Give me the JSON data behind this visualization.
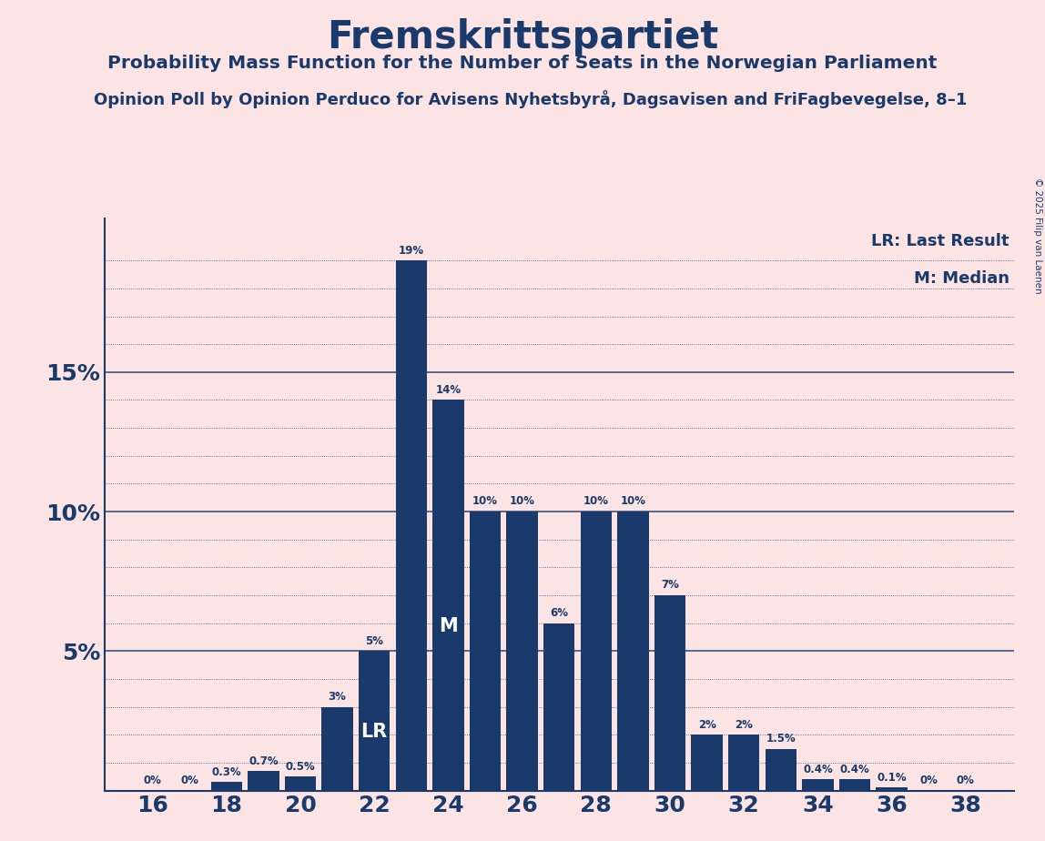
{
  "title": "Fremskrittspartiet",
  "subtitle": "Probability Mass Function for the Number of Seats in the Norwegian Parliament",
  "source_line": "Opinion Poll by Opinion Perduco for Avisens Nyhetsbyrå, Dagsavisen and FriFagbevegelse, 8–1",
  "copyright": "© 2025 Filip van Laenen",
  "seats": [
    16,
    17,
    18,
    19,
    20,
    21,
    22,
    23,
    24,
    25,
    26,
    27,
    28,
    29,
    30,
    31,
    32,
    33,
    34,
    35,
    36,
    37,
    38
  ],
  "probabilities": [
    0.0,
    0.0,
    0.3,
    0.7,
    0.5,
    3.0,
    5.0,
    19.0,
    14.0,
    10.0,
    10.0,
    6.0,
    10.0,
    10.0,
    7.0,
    2.0,
    2.0,
    1.5,
    0.4,
    0.4,
    0.1,
    0.0,
    0.0
  ],
  "bar_color": "#1a3a6b",
  "background_color": "#fce4e4",
  "text_color": "#1a3a6b",
  "grid_color": "#1a3a6b",
  "lr_seat": 22,
  "median_seat": 24,
  "xticks": [
    16,
    18,
    20,
    22,
    24,
    26,
    28,
    30,
    32,
    34,
    36,
    38
  ],
  "label_offsets": {
    "16": 0.0,
    "17": 0.0,
    "18": 0.3,
    "19": 0.7,
    "20": 0.5,
    "21": 3.0,
    "22": 5.0,
    "23": 19.0,
    "24": 14.0,
    "25": 10.0,
    "26": 10.0,
    "27": 6.0,
    "28": 10.0,
    "29": 10.0,
    "30": 7.0,
    "31": 2.0,
    "32": 2.0,
    "33": 1.5,
    "34": 0.4,
    "35": 0.4,
    "36": 0.1,
    "37": 0.0,
    "38": 0.0
  }
}
